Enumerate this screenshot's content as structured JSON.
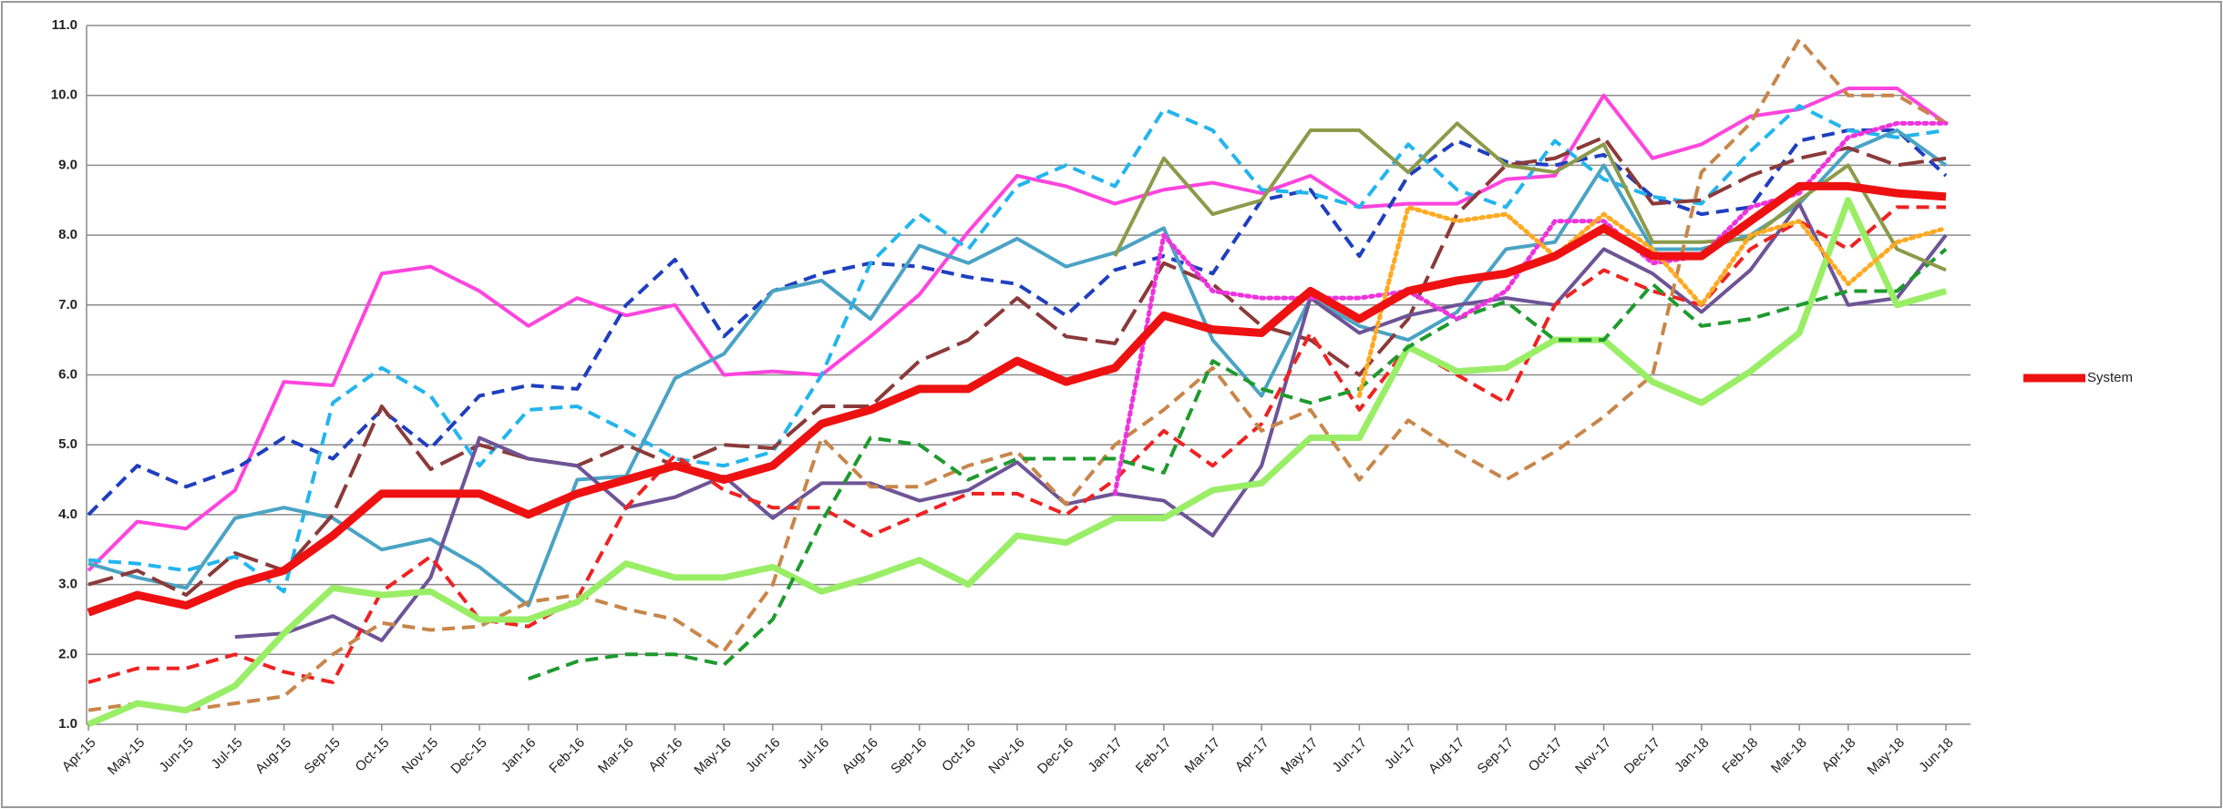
{
  "chart_data": {
    "type": "line",
    "categories": [
      "Apr-15",
      "May-15",
      "Jun-15",
      "Jul-15",
      "Aug-15",
      "Sep-15",
      "Oct-15",
      "Nov-15",
      "Dec-15",
      "Jan-16",
      "Feb-16",
      "Mar-16",
      "Apr-16",
      "May-16",
      "Jun-16",
      "Jul-16",
      "Aug-16",
      "Sep-16",
      "Oct-16",
      "Nov-16",
      "Dec-16",
      "Jan-17",
      "Feb-17",
      "Mar-17",
      "Apr-17",
      "May-17",
      "Jun-17",
      "Jul-17",
      "Aug-17",
      "Sep-17",
      "Oct-17",
      "Nov-17",
      "Dec-17",
      "Jan-18",
      "Feb-18",
      "Mar-18",
      "Apr-18",
      "May-18",
      "Jun-18"
    ],
    "ylim": [
      1,
      11
    ],
    "yticks": [
      {
        "value": 1,
        "label": "1.0"
      },
      {
        "value": 2,
        "label": "2.0"
      },
      {
        "value": 3,
        "label": "3.0"
      },
      {
        "value": 4,
        "label": "4.0"
      },
      {
        "value": 5,
        "label": "5.0"
      },
      {
        "value": 6,
        "label": "6.0"
      },
      {
        "value": 7,
        "label": "7.0"
      },
      {
        "value": 8,
        "label": "8.0"
      },
      {
        "value": 9,
        "label": "9.0"
      },
      {
        "value": 10,
        "label": "10.0"
      },
      {
        "value": 11,
        "label": "11.0"
      }
    ],
    "grid": true,
    "legend": "right",
    "series": [
      {
        "color": "#ff44dd",
        "style": "solid",
        "values": [
          3.2,
          3.9,
          3.8,
          4.35,
          5.9,
          5.85,
          7.45,
          7.55,
          7.2,
          6.7,
          7.1,
          6.85,
          7.0,
          6.0,
          6.05,
          6.0,
          6.55,
          7.15,
          8.05,
          8.85,
          8.7,
          8.45,
          8.65,
          8.75,
          8.6,
          8.85,
          8.4,
          8.45,
          8.45,
          8.8,
          8.85,
          10.0,
          9.1,
          9.3,
          9.7,
          9.8,
          10.1,
          10.1,
          9.6
        ]
      },
      {
        "color": "#1f3fbf",
        "style": "dashed",
        "values": [
          4.0,
          4.7,
          4.4,
          4.65,
          5.1,
          4.8,
          5.5,
          4.95,
          5.7,
          5.85,
          5.8,
          7.0,
          7.65,
          6.55,
          7.2,
          7.45,
          7.6,
          7.55,
          7.4,
          7.3,
          6.85,
          7.5,
          7.7,
          7.45,
          8.5,
          8.65,
          7.7,
          8.85,
          9.35,
          9.05,
          9.0,
          9.15,
          8.55,
          8.3,
          8.4,
          9.35,
          9.5,
          9.5,
          8.85
        ]
      },
      {
        "color": "#22b5ee",
        "style": "dashed",
        "values": [
          3.35,
          3.3,
          3.2,
          3.4,
          2.9,
          5.6,
          6.1,
          5.7,
          4.7,
          5.5,
          5.55,
          5.2,
          4.8,
          4.7,
          4.9,
          6.0,
          7.6,
          8.3,
          7.8,
          8.7,
          9.0,
          8.7,
          9.8,
          9.5,
          8.65,
          8.6,
          8.4,
          9.3,
          8.65,
          8.4,
          9.35,
          8.8,
          8.55,
          8.45,
          9.2,
          9.85,
          9.5,
          9.4,
          9.5
        ]
      },
      {
        "color": "#4aa3c4",
        "style": "solid",
        "values": [
          3.3,
          3.1,
          2.95,
          3.95,
          4.1,
          3.95,
          3.5,
          3.65,
          3.25,
          2.7,
          4.5,
          4.55,
          5.95,
          6.3,
          7.2,
          7.35,
          6.8,
          7.85,
          7.6,
          7.95,
          7.55,
          7.75,
          8.1,
          6.5,
          5.7,
          7.1,
          6.7,
          6.5,
          6.9,
          7.8,
          7.9,
          9.0,
          7.8,
          7.8,
          8.0,
          8.45,
          9.2,
          9.5,
          9.0
        ]
      },
      {
        "color": "#8b3a3a",
        "style": "longdash",
        "values": [
          3.0,
          3.2,
          2.85,
          3.45,
          3.2,
          4.0,
          5.55,
          4.65,
          5.0,
          4.8,
          4.7,
          5.0,
          4.7,
          5.0,
          4.95,
          5.55,
          5.55,
          6.2,
          6.5,
          7.1,
          6.55,
          6.45,
          7.6,
          7.3,
          6.7,
          6.5,
          6.0,
          6.8,
          8.3,
          9.0,
          9.1,
          9.4,
          8.45,
          8.5,
          8.85,
          9.1,
          9.25,
          9.0,
          9.1
        ]
      },
      {
        "color": "#6e5496",
        "style": "solid",
        "values": [
          null,
          null,
          null,
          2.25,
          2.3,
          2.55,
          2.2,
          3.1,
          5.1,
          4.8,
          4.7,
          4.1,
          4.25,
          4.55,
          3.95,
          4.45,
          4.45,
          4.2,
          4.35,
          4.75,
          4.15,
          4.3,
          4.2,
          3.7,
          4.7,
          7.1,
          6.6,
          6.85,
          7.0,
          7.1,
          7.0,
          7.8,
          7.45,
          6.9,
          7.5,
          8.45,
          7.0,
          7.1,
          8.0
        ]
      },
      {
        "color": "#ee2222",
        "style": "dashed",
        "values": [
          1.6,
          1.8,
          1.8,
          2.0,
          1.75,
          1.6,
          2.9,
          3.4,
          2.5,
          2.4,
          2.8,
          4.1,
          4.85,
          4.35,
          4.1,
          4.1,
          3.7,
          4.0,
          4.3,
          4.3,
          4.0,
          4.5,
          5.2,
          4.7,
          5.3,
          6.6,
          5.5,
          6.4,
          6.0,
          5.6,
          7.0,
          7.5,
          7.2,
          7.0,
          7.8,
          8.2,
          7.8,
          8.4,
          8.4
        ]
      },
      {
        "color": "#c8864a",
        "style": "dashed",
        "values": [
          1.2,
          1.3,
          1.2,
          1.3,
          1.4,
          2.0,
          2.45,
          2.35,
          2.4,
          2.75,
          2.85,
          2.65,
          2.5,
          2.05,
          3.0,
          5.1,
          4.4,
          4.4,
          4.7,
          4.9,
          4.15,
          5.0,
          5.5,
          6.1,
          5.2,
          5.5,
          4.5,
          5.35,
          4.9,
          4.5,
          4.9,
          5.4,
          6.0,
          8.9,
          9.6,
          10.8,
          10.0,
          10.0,
          9.6
        ]
      },
      {
        "color": "#99ee66",
        "style": "thick",
        "values": [
          1.0,
          1.3,
          1.2,
          1.55,
          2.3,
          2.95,
          2.85,
          2.9,
          2.5,
          2.5,
          2.75,
          3.3,
          3.1,
          3.1,
          3.25,
          2.9,
          3.1,
          3.35,
          3.0,
          3.7,
          3.6,
          3.95,
          3.95,
          4.35,
          4.45,
          5.1,
          5.1,
          6.4,
          6.05,
          6.1,
          6.5,
          6.5,
          5.9,
          5.6,
          6.05,
          6.6,
          8.5,
          7.0,
          7.2
        ]
      },
      {
        "color": "#1e9a2e",
        "style": "dashed",
        "values": [
          null,
          null,
          null,
          null,
          null,
          null,
          null,
          null,
          null,
          1.65,
          1.9,
          2.0,
          2.0,
          1.85,
          2.5,
          3.9,
          5.1,
          5.0,
          4.5,
          4.8,
          4.8,
          4.8,
          4.6,
          6.2,
          5.8,
          5.6,
          5.8,
          6.4,
          6.8,
          7.05,
          6.5,
          6.5,
          7.3,
          6.7,
          6.8,
          7.0,
          7.2,
          7.2,
          7.8
        ]
      },
      {
        "color": "#8c9a4a",
        "style": "solid",
        "values": [
          null,
          null,
          null,
          null,
          null,
          null,
          null,
          null,
          null,
          null,
          null,
          null,
          null,
          null,
          null,
          null,
          null,
          null,
          null,
          null,
          null,
          7.7,
          9.1,
          8.3,
          8.5,
          9.5,
          9.5,
          8.9,
          9.6,
          9.0,
          8.9,
          9.3,
          7.9,
          7.9,
          7.95,
          8.5,
          9.0,
          7.8,
          7.5
        ]
      },
      {
        "color": "#ee33dd",
        "style": "dotted",
        "values": [
          null,
          null,
          null,
          null,
          null,
          null,
          null,
          null,
          null,
          null,
          null,
          null,
          null,
          null,
          null,
          null,
          null,
          null,
          null,
          null,
          null,
          4.3,
          8.0,
          7.2,
          7.1,
          7.1,
          7.1,
          7.2,
          6.8,
          7.2,
          8.2,
          8.2,
          7.6,
          7.7,
          8.4,
          8.6,
          9.4,
          9.6,
          9.6
        ]
      },
      {
        "color": "#ffaa22",
        "style": "dotted",
        "values": [
          null,
          null,
          null,
          null,
          null,
          null,
          null,
          null,
          null,
          null,
          null,
          null,
          null,
          null,
          null,
          null,
          null,
          null,
          null,
          null,
          null,
          null,
          null,
          null,
          null,
          null,
          5.7,
          8.4,
          8.2,
          8.3,
          7.7,
          8.3,
          7.8,
          7.0,
          8.0,
          8.2,
          7.3,
          7.9,
          8.1
        ]
      },
      {
        "name": "System",
        "color": "#ee1111",
        "style": "bold",
        "values": [
          2.6,
          2.85,
          2.7,
          3.0,
          3.2,
          3.7,
          4.3,
          4.3,
          4.3,
          4.0,
          4.3,
          4.5,
          4.7,
          4.5,
          4.7,
          5.3,
          5.5,
          5.8,
          5.8,
          6.2,
          5.9,
          6.1,
          6.85,
          6.65,
          6.6,
          7.2,
          6.8,
          7.2,
          7.35,
          7.45,
          7.7,
          8.1,
          7.7,
          7.7,
          8.2,
          8.7,
          8.7,
          8.6,
          8.55
        ]
      }
    ]
  }
}
